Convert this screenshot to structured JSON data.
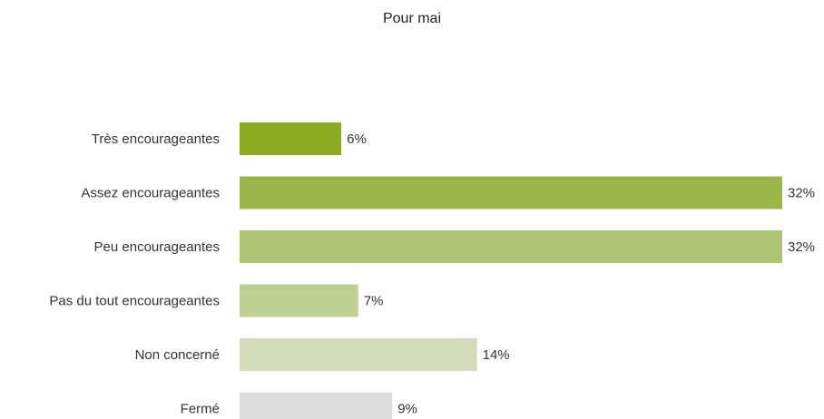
{
  "chart_data": {
    "type": "bar",
    "orientation": "horizontal",
    "title": "Pour mai",
    "categories": [
      "Très encourageantes",
      "Assez encourageantes",
      "Peu encourageantes",
      "Pas du tout encourageantes",
      "Non concerné",
      "Fermé"
    ],
    "values": [
      6,
      32,
      32,
      7,
      14,
      9
    ],
    "value_labels": [
      "6%",
      "32%",
      "32%",
      "7%",
      "14%",
      "9%"
    ],
    "bar_colors": [
      "#8aab22",
      "#9cb64a",
      "#adc472",
      "#bfd093",
      "#d2dcbb",
      "#dcdcdc"
    ],
    "unit": "%",
    "xlim": [
      0,
      32
    ],
    "grid": false,
    "legend": "none"
  }
}
